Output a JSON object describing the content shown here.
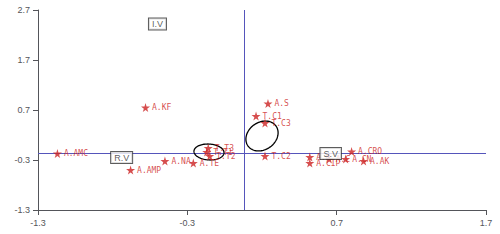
{
  "chart_data": {
    "type": "scatter",
    "xlim": [
      -1.3,
      1.7
    ],
    "ylim": [
      -1.3,
      2.7
    ],
    "xticks": [
      -1.3,
      -0.3,
      0.7,
      1.7
    ],
    "yticks": [
      -1.3,
      -0.3,
      0.7,
      1.7,
      2.7
    ],
    "grid": false,
    "color": "#cc2222",
    "marker": "star",
    "points": [
      {
        "label": "A.AMC",
        "x": -1.17,
        "y": -0.17
      },
      {
        "label": "A.KF",
        "x": -0.58,
        "y": 0.75
      },
      {
        "label": "A.AMP",
        "x": -0.68,
        "y": -0.5
      },
      {
        "label": "A.NA",
        "x": -0.45,
        "y": -0.32
      },
      {
        "label": "A.TE",
        "x": -0.26,
        "y": -0.36
      },
      {
        "label": "T.T3",
        "x": -0.16,
        "y": -0.06
      },
      {
        "label": "T.T1",
        "x": -0.17,
        "y": -0.14
      },
      {
        "label": "T.T2",
        "x": -0.15,
        "y": -0.22
      },
      {
        "label": "A.S",
        "x": 0.24,
        "y": 0.83
      },
      {
        "label": "T.C1",
        "x": 0.16,
        "y": 0.58
      },
      {
        "label": "T.C3",
        "x": 0.22,
        "y": 0.44
      },
      {
        "label": "T.C2",
        "x": 0.22,
        "y": -0.22
      },
      {
        "label": "A.K",
        "x": 0.52,
        "y": -0.24
      },
      {
        "label": "A.CIP",
        "x": 0.52,
        "y": -0.36
      },
      {
        "label": "A.C",
        "x": 0.65,
        "y": -0.28
      },
      {
        "label": "A.CRO",
        "x": 0.8,
        "y": -0.13
      },
      {
        "label": "A.CN",
        "x": 0.76,
        "y": -0.28
      },
      {
        "label": "A.AK",
        "x": 0.88,
        "y": -0.32
      }
    ],
    "reference_lines": {
      "color": "#5555bb",
      "y": -0.17,
      "x": 0.08
    },
    "ellipses": {
      "color": "#000000",
      "items": [
        {
          "cx": -0.155,
          "cy": -0.14,
          "width": 0.2,
          "height": 0.32,
          "angle": 5
        },
        {
          "cx": 0.2,
          "cy": 0.18,
          "width": 0.21,
          "height": 0.6,
          "angle": -5
        }
      ]
    },
    "annotations": {
      "color": "#333333",
      "items": [
        {
          "text": "I.V",
          "x": -0.5,
          "y": 2.42
        },
        {
          "text": "R.V",
          "x": -0.74,
          "y": -0.25
        },
        {
          "text": "S.V",
          "x": 0.66,
          "y": -0.17
        }
      ]
    }
  }
}
